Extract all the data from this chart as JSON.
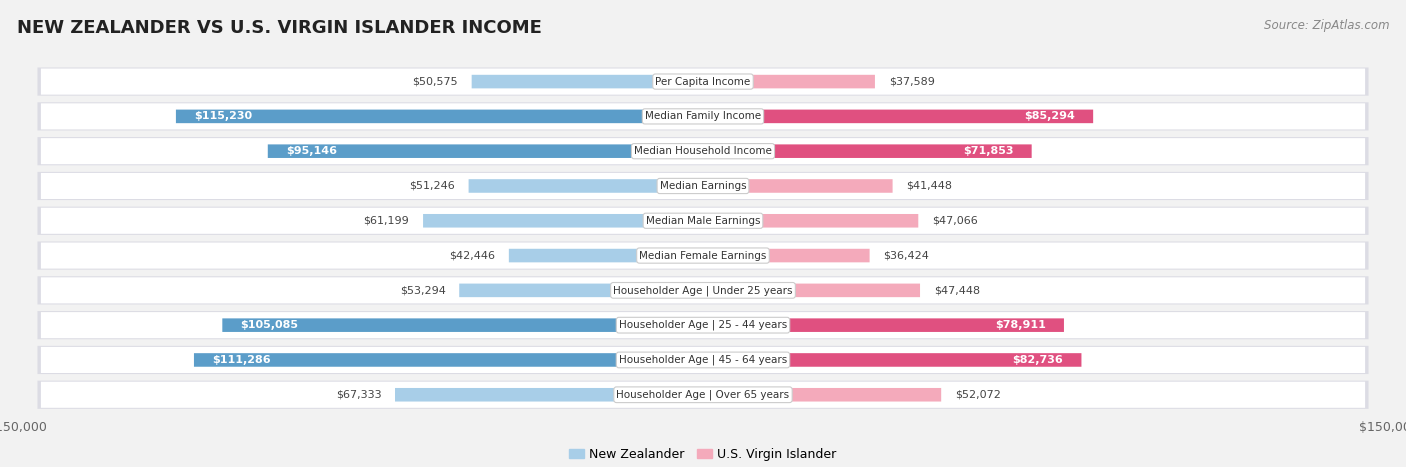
{
  "title": "NEW ZEALANDER VS U.S. VIRGIN ISLANDER INCOME",
  "source": "Source: ZipAtlas.com",
  "max_value": 150000,
  "categories": [
    "Per Capita Income",
    "Median Family Income",
    "Median Household Income",
    "Median Earnings",
    "Median Male Earnings",
    "Median Female Earnings",
    "Householder Age | Under 25 years",
    "Householder Age | 25 - 44 years",
    "Householder Age | 45 - 64 years",
    "Householder Age | Over 65 years"
  ],
  "nz_values": [
    50575,
    115230,
    95146,
    51246,
    61199,
    42446,
    53294,
    105085,
    111286,
    67333
  ],
  "usvi_values": [
    37589,
    85294,
    71853,
    41448,
    47066,
    36424,
    47448,
    78911,
    82736,
    52072
  ],
  "nz_color_light": "#A8CEE8",
  "nz_color_dark": "#5B9DC9",
  "usvi_color_light": "#F4AABB",
  "usvi_color_dark": "#E05080",
  "bg_color": "#f2f2f2",
  "row_bg": "#e8e8ee",
  "row_inner_bg": "#ffffff",
  "label_inside_threshold": 70000,
  "legend_nz": "New Zealander",
  "legend_usvi": "U.S. Virgin Islander"
}
